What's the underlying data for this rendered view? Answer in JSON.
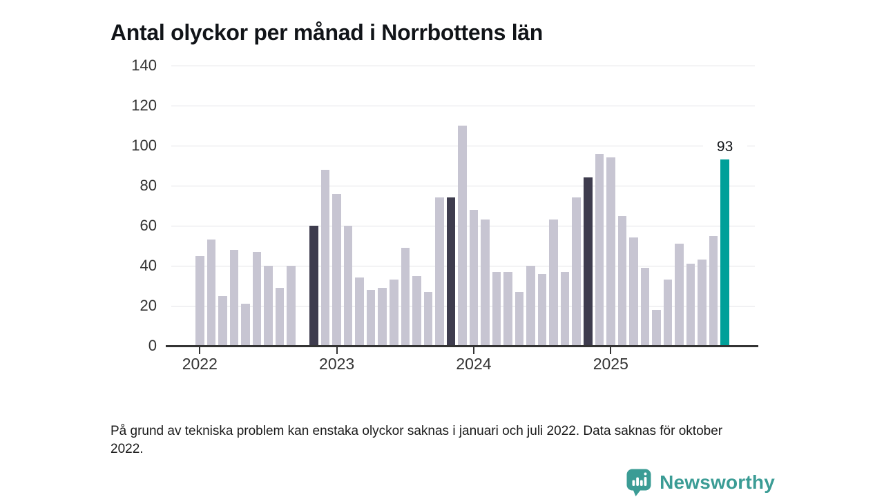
{
  "title": "Antal olyckor per månad i Norrbottens län",
  "footnote": "På grund av tekniska problem kan enstaka olyckor saknas i januari och juli 2022. Data saknas för oktober 2022.",
  "branding": {
    "name": "Newsworthy",
    "color": "#3b9c95",
    "icon": "bar-chart-speech-bubble"
  },
  "chart_data": {
    "type": "bar",
    "title": "Antal olyckor per månad i Norrbottens län",
    "xlabel": "",
    "ylabel": "",
    "ylim": [
      0,
      140
    ],
    "yticks": [
      0,
      20,
      40,
      60,
      80,
      100,
      120,
      140
    ],
    "grid": "horizontal",
    "legend": "none",
    "colors": {
      "default": "#c7c5d2",
      "highlight_dark": "#3e3c4e",
      "highlight_current": "#00a099",
      "gridline": "#e2e2e6",
      "axis": "#333333"
    },
    "xtick_years": [
      {
        "label": "2022",
        "month_index": 0
      },
      {
        "label": "2023",
        "month_index": 12
      },
      {
        "label": "2024",
        "month_index": 24
      },
      {
        "label": "2025",
        "month_index": 36
      }
    ],
    "annotation": {
      "month": "2025-11",
      "text": "93"
    },
    "months": [
      {
        "month": "2022-01",
        "value": 45
      },
      {
        "month": "2022-02",
        "value": 53
      },
      {
        "month": "2022-03",
        "value": 25
      },
      {
        "month": "2022-04",
        "value": 48
      },
      {
        "month": "2022-05",
        "value": 21
      },
      {
        "month": "2022-06",
        "value": 47
      },
      {
        "month": "2022-07",
        "value": 40
      },
      {
        "month": "2022-08",
        "value": 29
      },
      {
        "month": "2022-09",
        "value": 40
      },
      {
        "month": "2022-10",
        "value": null
      },
      {
        "month": "2022-11",
        "value": 60,
        "highlight": "dark"
      },
      {
        "month": "2022-12",
        "value": 88
      },
      {
        "month": "2023-01",
        "value": 76
      },
      {
        "month": "2023-02",
        "value": 60
      },
      {
        "month": "2023-03",
        "value": 34
      },
      {
        "month": "2023-04",
        "value": 28
      },
      {
        "month": "2023-05",
        "value": 29
      },
      {
        "month": "2023-06",
        "value": 33
      },
      {
        "month": "2023-07",
        "value": 49
      },
      {
        "month": "2023-08",
        "value": 35
      },
      {
        "month": "2023-09",
        "value": 27
      },
      {
        "month": "2023-10",
        "value": 74
      },
      {
        "month": "2023-11",
        "value": 74,
        "highlight": "dark"
      },
      {
        "month": "2023-12",
        "value": 110
      },
      {
        "month": "2024-01",
        "value": 68
      },
      {
        "month": "2024-02",
        "value": 63
      },
      {
        "month": "2024-03",
        "value": 37
      },
      {
        "month": "2024-04",
        "value": 37
      },
      {
        "month": "2024-05",
        "value": 27
      },
      {
        "month": "2024-06",
        "value": 40
      },
      {
        "month": "2024-07",
        "value": 36
      },
      {
        "month": "2024-08",
        "value": 63
      },
      {
        "month": "2024-09",
        "value": 37
      },
      {
        "month": "2024-10",
        "value": 74
      },
      {
        "month": "2024-11",
        "value": 84,
        "highlight": "dark"
      },
      {
        "month": "2024-12",
        "value": 96
      },
      {
        "month": "2025-01",
        "value": 94
      },
      {
        "month": "2025-02",
        "value": 65
      },
      {
        "month": "2025-03",
        "value": 54
      },
      {
        "month": "2025-04",
        "value": 39
      },
      {
        "month": "2025-05",
        "value": 18
      },
      {
        "month": "2025-06",
        "value": 33
      },
      {
        "month": "2025-07",
        "value": 51
      },
      {
        "month": "2025-08",
        "value": 41
      },
      {
        "month": "2025-09",
        "value": 43
      },
      {
        "month": "2025-10",
        "value": 55
      },
      {
        "month": "2025-11",
        "value": 93,
        "highlight": "current",
        "label": "93"
      }
    ]
  }
}
